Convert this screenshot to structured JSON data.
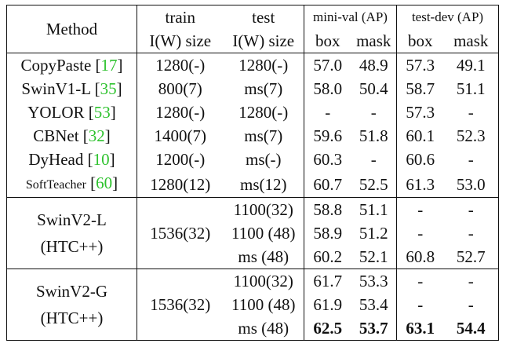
{
  "header": {
    "method": "Method",
    "train_top": "train",
    "train_bottom": "I(W) size",
    "test_top": "test",
    "test_bottom": "I(W) size",
    "minival": "mini-val (AP)",
    "testdev": "test-dev (AP)",
    "box": "box",
    "mask": "mask"
  },
  "rows": [
    {
      "method": "CopyPaste",
      "ref": "17",
      "train": "1280(-)",
      "test": "1280(-)",
      "mv_box": "57.0",
      "mv_mask": "48.9",
      "td_box": "57.3",
      "td_mask": "49.1"
    },
    {
      "method": "SwinV1-L",
      "ref": "35",
      "train": "800(7)",
      "test": "ms(7)",
      "mv_box": "58.0",
      "mv_mask": "50.4",
      "td_box": "58.7",
      "td_mask": "51.1"
    },
    {
      "method": "YOLOR",
      "ref": "53",
      "train": "1280(-)",
      "test": "1280(-)",
      "mv_box": "-",
      "mv_mask": "-",
      "td_box": "57.3",
      "td_mask": "-"
    },
    {
      "method": "CBNet",
      "ref": "32",
      "train": "1400(7)",
      "test": "ms(7)",
      "mv_box": "59.6",
      "mv_mask": "51.8",
      "td_box": "60.1",
      "td_mask": "52.3"
    },
    {
      "method": "DyHead",
      "ref": "10",
      "train": "1200(-)",
      "test": "ms(-)",
      "mv_box": "60.3",
      "mv_mask": "-",
      "td_box": "60.6",
      "td_mask": "-"
    },
    {
      "method": "SoftTeacher",
      "ref": "60",
      "train": "1280(12)",
      "test": "ms(12)",
      "mv_box": "60.7",
      "mv_mask": "52.5",
      "td_box": "61.3",
      "td_mask": "53.0"
    }
  ],
  "groups": [
    {
      "method_line1": "SwinV2-L",
      "method_line2": "(HTC++)",
      "train": "1536(32)",
      "rows": [
        {
          "test": "1100(32)",
          "mv_box": "58.8",
          "mv_mask": "51.1",
          "td_box": "-",
          "td_mask": "-"
        },
        {
          "test": "1100 (48)",
          "mv_box": "58.9",
          "mv_mask": "51.2",
          "td_box": "-",
          "td_mask": "-"
        },
        {
          "test": "ms (48)",
          "mv_box": "60.2",
          "mv_mask": "52.1",
          "td_box": "60.8",
          "td_mask": "52.7"
        }
      ]
    },
    {
      "method_line1": "SwinV2-G",
      "method_line2": "(HTC++)",
      "train": "1536(32)",
      "rows": [
        {
          "test": "1100(32)",
          "mv_box": "61.7",
          "mv_mask": "53.3",
          "td_box": "-",
          "td_mask": "-"
        },
        {
          "test": "1100 (48)",
          "mv_box": "61.9",
          "mv_mask": "53.4",
          "td_box": "-",
          "td_mask": "-"
        },
        {
          "test": "ms (48)",
          "mv_box": "62.5",
          "mv_mask": "53.7",
          "td_box": "63.1",
          "td_mask": "54.4"
        }
      ]
    }
  ]
}
